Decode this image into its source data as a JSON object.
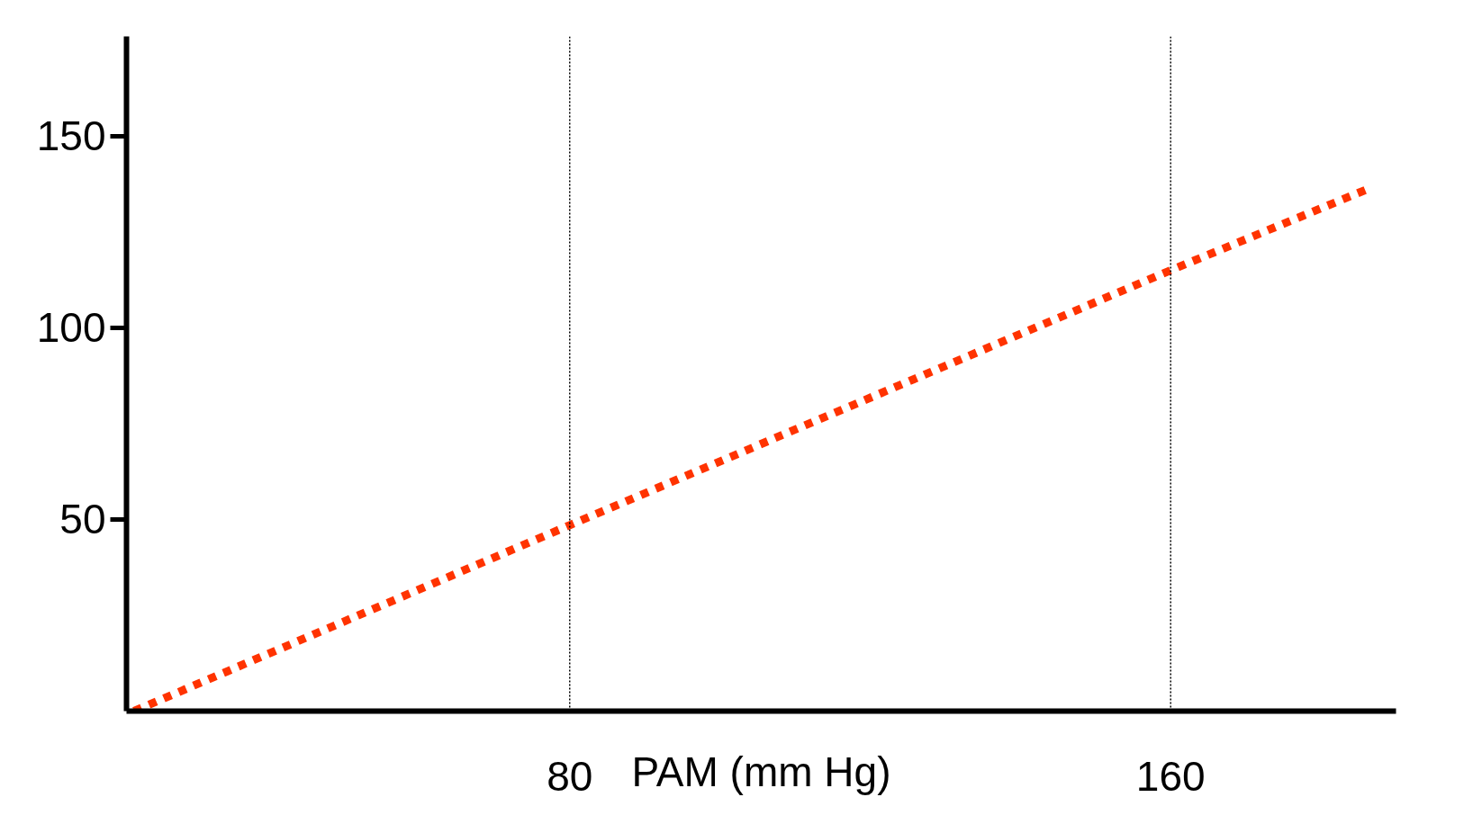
{
  "chart_data": {
    "type": "line",
    "xlabel": "PAM (mm Hg)",
    "x": [
      22,
      80,
      160,
      186
    ],
    "series": [
      {
        "color": "#ff3300",
        "values": [
          0,
          48.5,
          115,
          136
        ]
      }
    ],
    "xlim": [
      21,
      190
    ],
    "ylim": [
      0,
      176
    ],
    "xticks": [
      80,
      160
    ],
    "yticks": [
      50,
      100,
      150
    ],
    "ref_lines": [
      {
        "axis": "x",
        "value": 80,
        "label": null,
        "color": "#000000",
        "line_style": "dotted"
      },
      {
        "axis": "x",
        "value": 160,
        "label": null,
        "color": "#000000",
        "line_style": "dotted"
      }
    ],
    "line_style": "dotted",
    "marker": "none",
    "grid": false
  }
}
